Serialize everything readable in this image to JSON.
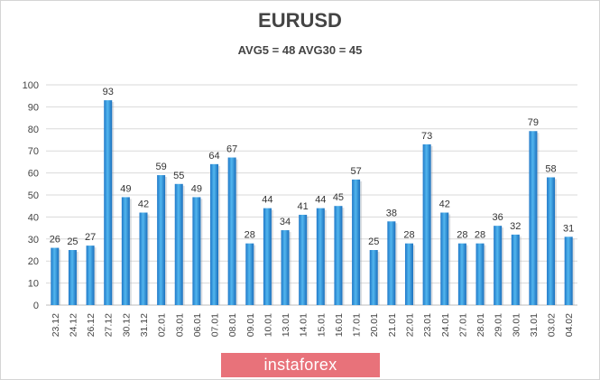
{
  "chart_data": {
    "type": "bar",
    "title": "EURUSD",
    "subtitle": "AVG5 = 48 AVG30 = 45",
    "xlabel": "",
    "ylabel": "",
    "ylim": [
      0,
      100
    ],
    "yticks": [
      0,
      10,
      20,
      30,
      40,
      50,
      60,
      70,
      80,
      90,
      100
    ],
    "grid": true,
    "bar_color": "#3399dd",
    "categories": [
      "23.12",
      "24.12",
      "26.12",
      "27.12",
      "30.12",
      "31.12",
      "02.01",
      "03.01",
      "06.01",
      "07.01",
      "08.01",
      "09.01",
      "10.01",
      "13.01",
      "14.01",
      "15.01",
      "16.01",
      "17.01",
      "20.01",
      "21.01",
      "22.01",
      "23.01",
      "24.01",
      "27.01",
      "28.01",
      "29.01",
      "30.01",
      "31.01",
      "03.02",
      "04.02"
    ],
    "values": [
      26,
      25,
      27,
      93,
      49,
      42,
      59,
      55,
      49,
      64,
      67,
      28,
      44,
      34,
      41,
      44,
      45,
      57,
      25,
      38,
      28,
      73,
      42,
      28,
      28,
      36,
      32,
      79,
      58,
      31
    ]
  },
  "watermark": {
    "text": "instaforex",
    "color": "#e8727a"
  }
}
